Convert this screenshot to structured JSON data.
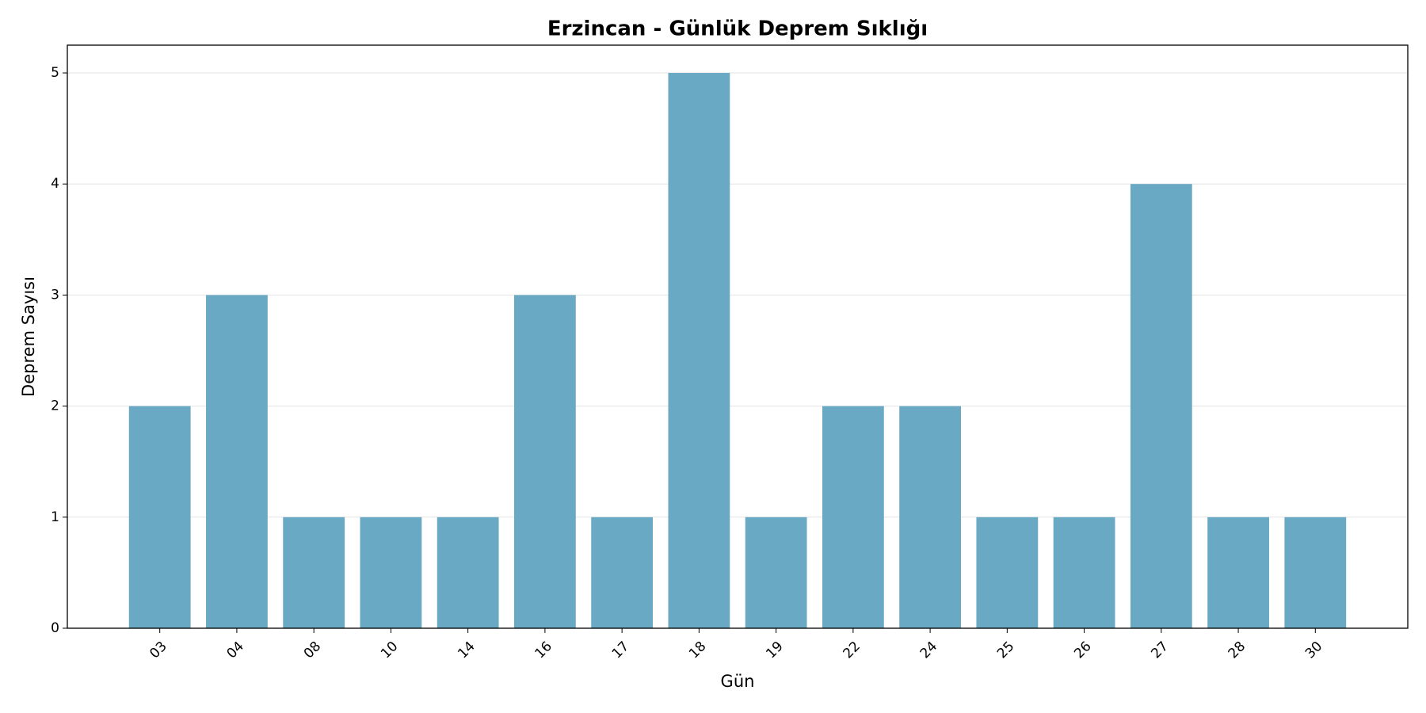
{
  "chart_data": {
    "type": "bar",
    "title": "Erzincan - Günlük Deprem Sıklığı",
    "x_label": "Gün",
    "y_label": "Deprem Sayısı",
    "categories": [
      "03",
      "04",
      "08",
      "10",
      "14",
      "16",
      "17",
      "18",
      "19",
      "22",
      "24",
      "25",
      "26",
      "27",
      "28",
      "30"
    ],
    "values": [
      2,
      3,
      1,
      1,
      1,
      3,
      1,
      5,
      1,
      2,
      2,
      1,
      1,
      4,
      1,
      1
    ],
    "color": "#6aa9c4",
    "ylim": [
      0,
      5.25
    ],
    "yticks": [
      0,
      1,
      2,
      3,
      4,
      5
    ],
    "grid": true
  }
}
